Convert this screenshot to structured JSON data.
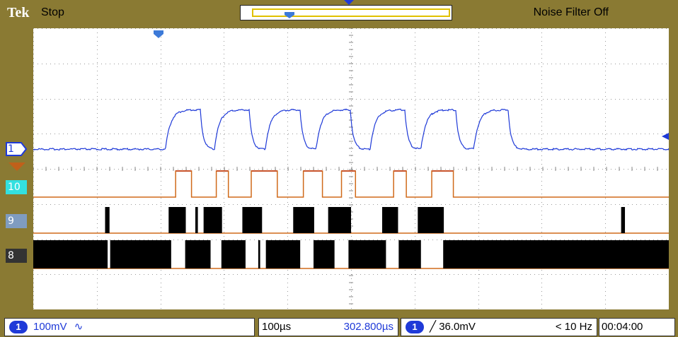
{
  "brand": "Tek",
  "acquisition_state": "Stop",
  "noise_filter": "Noise Filter Off",
  "channel_labels": {
    "analog1": "1",
    "digital10": "10",
    "digital9": "9",
    "digital8": "8"
  },
  "readouts": {
    "ch1_scale": "100mV",
    "ch1_coupling_symbol": "∿",
    "timebase": "100µs",
    "horizontal_position": "302.800µs",
    "trigger_source": "1",
    "trigger_level": "36.0mV",
    "trigger_slope_symbol": "╱",
    "trigger_frequency": "< 10 Hz",
    "record_time": "00:04:00"
  },
  "colors": {
    "bezel": "#8a7a33",
    "analog1": "#1f3ad8",
    "digital10_line": "#d06a1a",
    "digital10_high": "#b01060",
    "digital10_marker": "#33e0e0",
    "digital9_marker": "#7f9cc0",
    "digital8_marker": "#333333",
    "grid": "#999999"
  },
  "grid": {
    "divisions_x": 10,
    "divisions_y": 8
  },
  "analog_waveform": {
    "baseline_level": 0.43,
    "high_level": 0.29,
    "pulse_starts": [
      0.208,
      0.285,
      0.365,
      0.445,
      0.53,
      0.61,
      0.693
    ],
    "pulse_width_fraction": 0.055
  },
  "digital_10": {
    "pulses": [
      [
        0.224,
        0.249
      ],
      [
        0.288,
        0.307
      ],
      [
        0.343,
        0.384
      ],
      [
        0.425,
        0.455
      ],
      [
        0.485,
        0.507
      ],
      [
        0.567,
        0.587
      ],
      [
        0.627,
        0.661
      ]
    ]
  },
  "digital_9": {
    "bursts": [
      [
        0.113,
        0.12
      ],
      [
        0.213,
        0.24
      ],
      [
        0.255,
        0.259
      ],
      [
        0.268,
        0.297
      ],
      [
        0.329,
        0.36
      ],
      [
        0.409,
        0.442
      ],
      [
        0.464,
        0.5
      ],
      [
        0.549,
        0.574
      ],
      [
        0.605,
        0.646
      ],
      [
        0.925,
        0.931
      ]
    ]
  },
  "digital_8": {
    "bursts": [
      [
        0.0,
        0.117
      ],
      [
        0.121,
        0.217
      ],
      [
        0.239,
        0.279
      ],
      [
        0.296,
        0.334
      ],
      [
        0.354,
        0.357
      ],
      [
        0.366,
        0.42
      ],
      [
        0.441,
        0.474
      ],
      [
        0.496,
        0.555
      ],
      [
        0.575,
        0.61
      ],
      [
        0.645,
        1.0
      ]
    ]
  }
}
